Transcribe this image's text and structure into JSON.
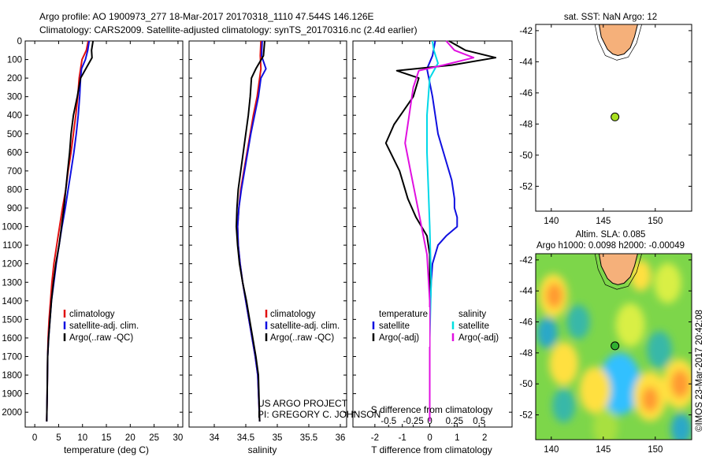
{
  "header": {
    "title_line1": "Argo profile: AO 1900973_277 18-Mar-2017 20170318_1110 47.544S 146.126E",
    "title_line2": "Climatology: CARS2009. Satellite-adjusted climatology: synTS_20170316.nc (2.4d earlier)"
  },
  "chart_data": [
    {
      "id": "temperature",
      "type": "line",
      "xlabel": "temperature (deg C)",
      "ylabel": "",
      "xlim": [
        -2,
        31
      ],
      "ylim": [
        0,
        2080
      ],
      "xticks": [
        0,
        5,
        10,
        15,
        20,
        25,
        30
      ],
      "xtick_labels": [
        "0",
        "5",
        "10",
        "15",
        "20",
        "25",
        "30"
      ],
      "yticks": [
        0,
        100,
        200,
        300,
        400,
        500,
        600,
        700,
        800,
        900,
        1000,
        1100,
        1200,
        1300,
        1400,
        1500,
        1600,
        1700,
        1800,
        1900,
        2000
      ],
      "ytick_labels": [
        "0",
        "100",
        "200",
        "300",
        "400",
        "500",
        "600",
        "700",
        "800",
        "900",
        "1000",
        "1100",
        "1200",
        "1300",
        "1400",
        "1500",
        "1600",
        "1700",
        "1800",
        "1900",
        "2000"
      ],
      "legend": [
        "climatology",
        "satellite-adj. clim.",
        "Argo(..raw -QC)"
      ],
      "legend_colors": [
        "#e01010",
        "#1010e0",
        "#000000"
      ],
      "series": [
        {
          "name": "climatology",
          "color": "#e01010",
          "x": [
            11.2,
            10.8,
            9.9,
            9.6,
            9.3,
            9.0,
            8.6,
            8.1,
            7.6,
            7.0,
            6.5,
            5.8,
            5.2,
            4.6,
            4.0,
            3.6,
            3.3,
            3.0,
            2.8,
            2.7,
            2.6,
            2.5
          ],
          "y": [
            0,
            50,
            100,
            150,
            200,
            300,
            400,
            500,
            600,
            700,
            800,
            900,
            1000,
            1100,
            1200,
            1300,
            1400,
            1500,
            1600,
            1700,
            1900,
            2050
          ]
        },
        {
          "name": "satellite-adj. clim.",
          "color": "#1010e0",
          "x": [
            11.4,
            11.1,
            10.6,
            9.8,
            9.6,
            9.4,
            9.1,
            8.7,
            8.2,
            7.6,
            7.0,
            6.4,
            5.7,
            5.1,
            4.5,
            4.0,
            3.5,
            3.2,
            2.9,
            2.7,
            2.6,
            2.5
          ],
          "y": [
            0,
            50,
            100,
            150,
            200,
            300,
            400,
            500,
            600,
            700,
            800,
            900,
            1000,
            1100,
            1200,
            1300,
            1400,
            1500,
            1600,
            1700,
            1900,
            2050
          ]
        },
        {
          "name": "Argo(..raw -QC)",
          "color": "#000000",
          "x": [
            12.2,
            11.9,
            12.0,
            10.9,
            9.6,
            8.9,
            8.1,
            7.6,
            7.3,
            6.9,
            6.5,
            6.1,
            5.6,
            5.1,
            4.4,
            3.9,
            3.5,
            3.2,
            2.9,
            2.7,
            2.6,
            2.5
          ],
          "y": [
            0,
            50,
            90,
            140,
            200,
            300,
            400,
            500,
            600,
            700,
            800,
            900,
            1000,
            1100,
            1200,
            1300,
            1400,
            1500,
            1600,
            1700,
            1900,
            2050
          ]
        }
      ]
    },
    {
      "id": "salinity",
      "type": "line",
      "xlabel": "salinity",
      "xlim": [
        33.6,
        36.1
      ],
      "ylim": [
        0,
        2080
      ],
      "xticks": [
        34,
        34.5,
        35,
        35.5,
        36
      ],
      "xtick_labels": [
        "34",
        "34.5",
        "35",
        "35.5",
        "36"
      ],
      "legend": [
        "climatology",
        "satellite-adj. clim.",
        "Argo(..raw -QC)"
      ],
      "legend_colors": [
        "#e01010",
        "#1010e0",
        "#000000"
      ],
      "annotation_lines": [
        "US ARGO PROJECT",
        "PI: GREGORY C. JOHNSON"
      ],
      "series": [
        {
          "name": "climatology",
          "color": "#e01010",
          "x": [
            34.74,
            34.73,
            34.74,
            34.72,
            34.68,
            34.62,
            34.57,
            34.52,
            34.47,
            34.42,
            34.39,
            34.37,
            34.38,
            34.41,
            34.45,
            34.5,
            34.55,
            34.6,
            34.65,
            34.69,
            34.72
          ],
          "y": [
            0,
            80,
            150,
            200,
            300,
            400,
            500,
            600,
            700,
            800,
            900,
            1000,
            1100,
            1200,
            1300,
            1400,
            1500,
            1600,
            1700,
            1800,
            2050
          ]
        },
        {
          "name": "satellite-adj. clim.",
          "color": "#1010e0",
          "x": [
            34.76,
            34.75,
            34.82,
            34.74,
            34.7,
            34.64,
            34.58,
            34.53,
            34.48,
            34.43,
            34.39,
            34.37,
            34.38,
            34.41,
            34.45,
            34.5,
            34.55,
            34.6,
            34.65,
            34.69,
            34.72
          ],
          "y": [
            0,
            80,
            150,
            200,
            300,
            400,
            500,
            600,
            700,
            800,
            900,
            1000,
            1100,
            1200,
            1300,
            1400,
            1500,
            1600,
            1700,
            1800,
            2050
          ]
        },
        {
          "name": "Argo(..raw -QC)",
          "color": "#000000",
          "x": [
            34.8,
            34.78,
            34.66,
            34.59,
            34.57,
            34.54,
            34.5,
            34.46,
            34.42,
            34.38,
            34.36,
            34.35,
            34.37,
            34.4,
            34.45,
            34.51,
            34.56,
            34.61,
            34.66,
            34.7,
            34.72
          ],
          "y": [
            0,
            80,
            150,
            200,
            300,
            400,
            500,
            600,
            700,
            800,
            900,
            1000,
            1100,
            1200,
            1300,
            1400,
            1500,
            1600,
            1700,
            1800,
            2050
          ]
        }
      ]
    },
    {
      "id": "difference",
      "type": "line",
      "xlabel": "T difference from climatology",
      "xlabel_top": "S difference from climatology",
      "xlim": [
        -2.8,
        3.0
      ],
      "ylim": [
        0,
        2080
      ],
      "xticks": [
        -2,
        -1,
        0,
        1,
        2
      ],
      "xtick_labels": [
        "-2",
        "-1",
        "0",
        "1",
        "2"
      ],
      "sticks_pos": [
        -1.5,
        -0.6,
        0,
        0.9,
        1.8
      ],
      "sticks_labels": [
        "-0.5",
        "-0.25",
        "0",
        "0.25",
        "0.5"
      ],
      "legend_left": [
        "temperature",
        "satellite",
        "Argo(-adj)"
      ],
      "legend_right": [
        "salinity",
        "satellite",
        "Argo(-adj)"
      ],
      "legend_left_colors": [
        "",
        "#1010e0",
        "#000000"
      ],
      "legend_right_colors": [
        "",
        "#00e0e0",
        "#e010e0"
      ],
      "series": [
        {
          "name": "T satellite",
          "color": "#1010e0",
          "x": [
            0.2,
            0.1,
            -0.1,
            0.1,
            0.3,
            0.6,
            0.8,
            0.9,
            0.9,
            1.0,
            1.0,
            0.6,
            0.3,
            0.1,
            0.05,
            0.0,
            0.0,
            0.0,
            0.0,
            0.0
          ],
          "y": [
            0,
            80,
            150,
            300,
            500,
            650,
            750,
            850,
            900,
            950,
            1000,
            1050,
            1100,
            1200,
            1300,
            1500,
            1700,
            1800,
            1900,
            2050
          ]
        },
        {
          "name": "T Argo",
          "color": "#000000",
          "x": [
            0.7,
            1.3,
            2.4,
            0.8,
            -1.2,
            -0.4,
            -0.6,
            -1.3,
            -1.6,
            -1.1,
            -0.8,
            -0.5,
            -0.3,
            -0.1,
            0.0,
            0.0,
            0.0,
            0.0,
            0.0
          ],
          "y": [
            0,
            50,
            90,
            130,
            160,
            200,
            300,
            450,
            550,
            700,
            850,
            950,
            1000,
            1050,
            1150,
            1300,
            1500,
            1800,
            2050
          ]
        },
        {
          "name": "S satellite",
          "color": "#00d8e8",
          "x": [
            0.1,
            0.15,
            0.3,
            0.0,
            -0.1,
            -0.1,
            -0.05,
            0.0,
            0.05,
            0.0,
            0.0,
            0.0
          ],
          "y": [
            0,
            50,
            120,
            200,
            400,
            600,
            800,
            1000,
            1300,
            1600,
            1900,
            2050
          ]
        },
        {
          "name": "S Argo",
          "color": "#e010e0",
          "x": [
            0.6,
            0.9,
            1.6,
            0.5,
            -0.4,
            -0.6,
            -0.9,
            -0.7,
            -0.5,
            -0.3,
            -0.1,
            0.0,
            0.0
          ],
          "y": [
            0,
            50,
            90,
            130,
            160,
            250,
            550,
            700,
            850,
            1000,
            1150,
            1400,
            2050
          ]
        }
      ]
    },
    {
      "id": "sst_map",
      "type": "scatter",
      "title": "sat. SST: NaN Argo: 12",
      "xlim": [
        138.5,
        153.5
      ],
      "ylim": [
        -53.6,
        -41.6
      ],
      "xticks": [
        140,
        145,
        150
      ],
      "xtick_labels": [
        "140",
        "145",
        "150"
      ],
      "yticks": [
        -42,
        -44,
        -46,
        -48,
        -50,
        -52
      ],
      "ytick_labels": [
        "-42",
        "-44",
        "-46",
        "-48",
        "-50",
        "-52"
      ],
      "points": [
        {
          "x": 146.126,
          "y": -47.544,
          "color": "#a8e020"
        }
      ],
      "land_color": "#f5b07a"
    },
    {
      "id": "sla_map",
      "type": "heatmap",
      "title_line1": "Altim. SLA: 0.085",
      "title_line2": "Argo h1000: 0.0098 h2000: -0.00049",
      "side_label": "©IMOS 23-Mar-2017 20:42:08",
      "xlim": [
        138.5,
        153.5
      ],
      "ylim": [
        -53.6,
        -41.6
      ],
      "xticks": [
        140,
        145,
        150
      ],
      "xtick_labels": [
        "140",
        "145",
        "150"
      ],
      "yticks": [
        -42,
        -44,
        -46,
        -48,
        -50,
        -52
      ],
      "ytick_labels": [
        "-42",
        "-44",
        "-46",
        "-48",
        "-50",
        "-52"
      ],
      "points": [
        {
          "x": 146.126,
          "y": -47.544,
          "color": "#30b030"
        }
      ],
      "land_color": "#f5b07a",
      "background_color": "#7dd64a",
      "anomalies": [
        {
          "x": 146.6,
          "y": -50.0,
          "r": 1.3,
          "color": "#0a2aa0"
        },
        {
          "x": 146.6,
          "y": -50.0,
          "r": 2.0,
          "color": "#30c0ff"
        },
        {
          "x": 140.2,
          "y": -44.3,
          "r": 1.4,
          "color": "#ffe040"
        },
        {
          "x": 140.3,
          "y": -44.3,
          "r": 0.8,
          "color": "#ff9a30"
        },
        {
          "x": 152.3,
          "y": -50.0,
          "r": 1.6,
          "color": "#ffe040"
        },
        {
          "x": 152.4,
          "y": -50.0,
          "r": 0.9,
          "color": "#ff9a30"
        },
        {
          "x": 144.2,
          "y": -50.4,
          "r": 1.5,
          "color": "#ffe040"
        },
        {
          "x": 149.5,
          "y": -50.8,
          "r": 1.6,
          "color": "#ffe040"
        },
        {
          "x": 149.5,
          "y": -51.0,
          "r": 0.8,
          "color": "#ff9a30"
        },
        {
          "x": 141.2,
          "y": -48.7,
          "r": 1.4,
          "color": "#ffe040"
        },
        {
          "x": 147.6,
          "y": -46.2,
          "r": 1.4,
          "color": "#d9ef45"
        },
        {
          "x": 151.2,
          "y": -43.5,
          "r": 1.3,
          "color": "#d9ef45"
        },
        {
          "x": 142.6,
          "y": -46.0,
          "r": 1.1,
          "color": "#38b8a8"
        },
        {
          "x": 139.6,
          "y": -46.7,
          "r": 1.0,
          "color": "#2aa8c8"
        },
        {
          "x": 150.4,
          "y": -47.8,
          "r": 1.2,
          "color": "#38b8a8"
        },
        {
          "x": 141.2,
          "y": -51.4,
          "r": 1.1,
          "color": "#38b8a8"
        },
        {
          "x": 152.5,
          "y": -52.9,
          "r": 1.0,
          "color": "#2aa8c8"
        },
        {
          "x": 145.2,
          "y": -52.8,
          "r": 1.2,
          "color": "#a8e040"
        },
        {
          "x": 148.6,
          "y": -43.0,
          "r": 1.0,
          "color": "#ffe040"
        }
      ]
    }
  ]
}
